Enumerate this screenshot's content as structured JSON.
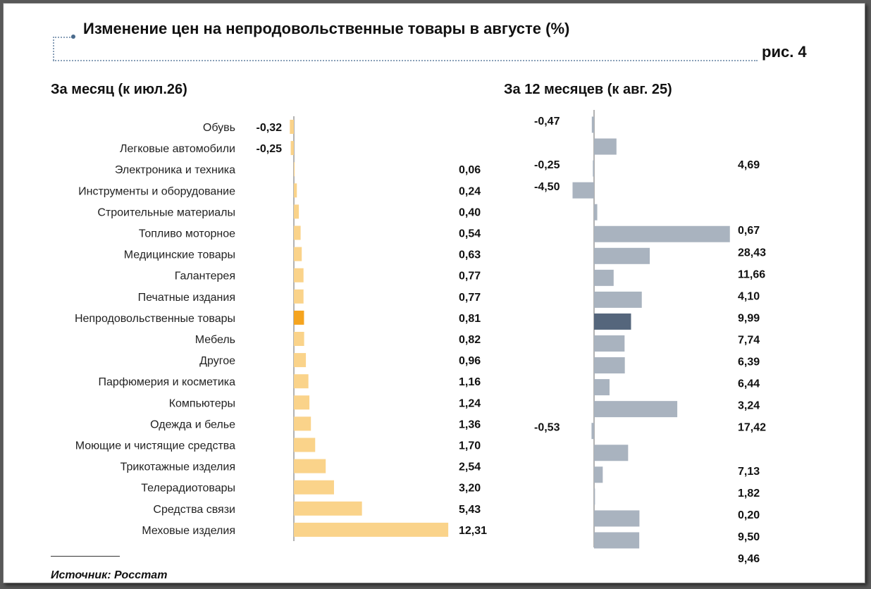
{
  "header": {
    "title": "Изменение цен на непродовольственные товары в августе (%)",
    "figure_label": "рис. 4"
  },
  "source": "Источник: Росстат",
  "colors": {
    "left_bar": "#fad38a",
    "left_highlight": "#f5a41f",
    "right_bar": "#a9b3bf",
    "right_highlight": "#55667c",
    "axis": "#999999"
  },
  "chart_data": [
    {
      "type": "bar",
      "orientation": "horizontal",
      "title": "За месяц (к июл.26)",
      "categories": [
        "Обувь",
        "Легковые автомобили",
        "Электроника и техника",
        "Инструменты и оборудование",
        "Строительные материалы",
        "Топливо моторное",
        "Медицинские товары",
        "Галантерея",
        "Печатные издания",
        "Непродовольственные товары",
        "Мебель",
        "Другое",
        "Парфюмерия и косметика",
        "Компьютеры",
        "Одежда и белье",
        "Моющие и чистящие средства",
        "Трикотажные изделия",
        "Телерадиотовары",
        "Средства связи",
        "Меховые изделия"
      ],
      "values": [
        -0.32,
        -0.25,
        0.06,
        0.24,
        0.4,
        0.54,
        0.63,
        0.77,
        0.77,
        0.81,
        0.82,
        0.96,
        1.16,
        1.24,
        1.36,
        1.7,
        2.54,
        3.2,
        5.43,
        12.31
      ],
      "labels": [
        "-0,32",
        "-0,25",
        "0,06",
        "0,24",
        "0,40",
        "0,54",
        "0,63",
        "0,77",
        "0,77",
        "0,81",
        "0,82",
        "0,96",
        "1,16",
        "1,24",
        "1,36",
        "1,70",
        "2,54",
        "3,20",
        "5,43",
        "12,31"
      ],
      "highlight_index": 9
    },
    {
      "type": "bar",
      "orientation": "horizontal",
      "title": "За 12 месяцев (к авг. 25)",
      "categories": [
        "Обувь",
        "Легковые автомобили",
        "Электроника и техника",
        "Инструменты и оборудование",
        "Строительные материалы",
        "Топливо моторное",
        "Медицинские товары",
        "Галантерея",
        "Печатные издания",
        "Непродовольственные товары",
        "Мебель",
        "Другое",
        "Парфюмерия и косметика",
        "Компьютеры",
        "Одежда и белье",
        "Моющие и чистящие средства",
        "Трикотажные изделия",
        "Телерадиотовары",
        "Средства связи",
        "Меховые изделия"
      ],
      "values": [
        -0.47,
        4.69,
        -0.25,
        -4.5,
        0.67,
        28.43,
        11.66,
        4.1,
        9.99,
        7.74,
        6.39,
        6.44,
        3.24,
        17.42,
        -0.53,
        7.13,
        1.82,
        0.2,
        9.5,
        9.46
      ],
      "labels": [
        "-0,47",
        "4,69",
        "-0,25",
        "-4,50",
        "0,67",
        "28,43",
        "11,66",
        "4,10",
        "9,99",
        "7,74",
        "6,39",
        "6,44",
        "3,24",
        "17,42",
        "-0,53",
        "7,13",
        "1,82",
        "0,20",
        "9,50",
        "9,46"
      ],
      "highlight_index": 9
    }
  ]
}
